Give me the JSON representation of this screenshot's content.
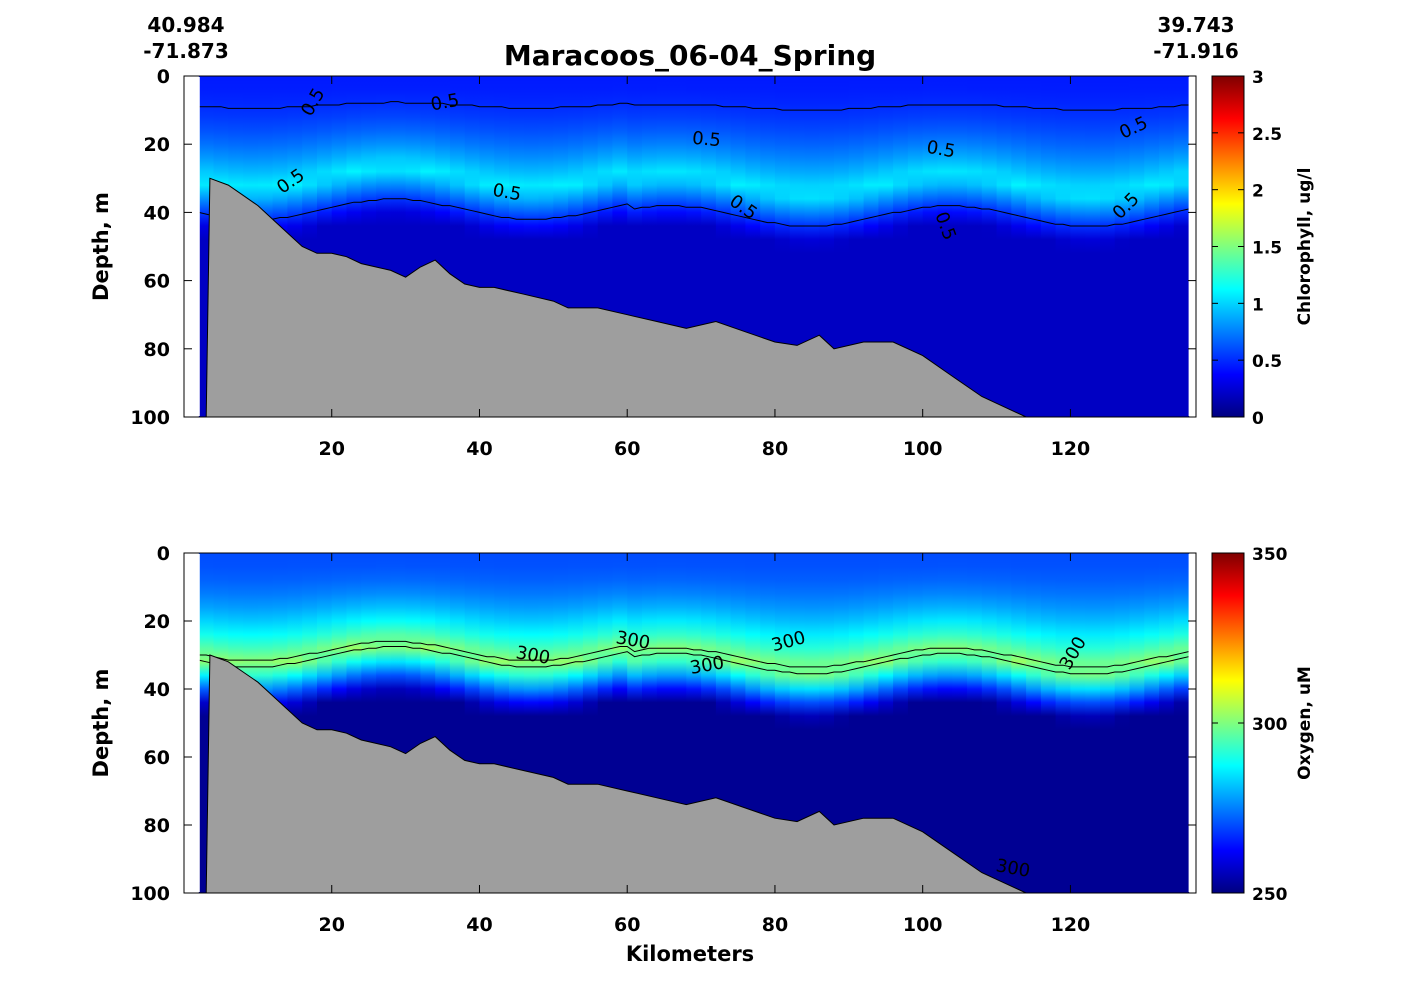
{
  "figure": {
    "title": "Maracoos_06-04_Spring",
    "start": {
      "lat": "40.984",
      "lon": "-71.873"
    },
    "end": {
      "lat": "39.743",
      "lon": "-71.916"
    },
    "xlabel": "Kilometers"
  },
  "colors": {
    "bathymetry": "#9e9e9e",
    "jet": [
      "#00007f",
      "#0000ff",
      "#007fff",
      "#00ffff",
      "#7fff7f",
      "#ffff00",
      "#ff7f00",
      "#ff0000",
      "#7f0000"
    ]
  },
  "chart_data": [
    {
      "type": "heatmap",
      "ylabel": "Depth, m",
      "colorbar_label": "Chlorophyll, ug/l",
      "xlim": [
        0,
        137
      ],
      "ylim": [
        100,
        0
      ],
      "xticks": [
        "20",
        "40",
        "60",
        "80",
        "100",
        "120"
      ],
      "yticks": [
        "0",
        "20",
        "40",
        "60",
        "80",
        "100"
      ],
      "clim": [
        0,
        3
      ],
      "cticks": [
        "0",
        "0.5",
        "1",
        "1.5",
        "2",
        "2.5",
        "3"
      ],
      "contour_level": 0.5,
      "contour_labels": [
        "0.5",
        "0.5",
        "0.5",
        "0.5",
        "0.5",
        "0.5",
        "0.5",
        "0.5",
        "0.5",
        "0.5"
      ],
      "values": {
        "surface": 0.45,
        "max_layer": 1.1,
        "max_layer_depth_m": 30,
        "deep": 0.2
      }
    },
    {
      "type": "heatmap",
      "ylabel": "Depth, m",
      "colorbar_label": "Oxygen, uM",
      "xlim": [
        0,
        137
      ],
      "ylim": [
        100,
        0
      ],
      "xticks": [
        "20",
        "40",
        "60",
        "80",
        "100",
        "120"
      ],
      "yticks": [
        "0",
        "20",
        "40",
        "60",
        "80",
        "100"
      ],
      "clim": [
        250,
        350
      ],
      "cticks": [
        "250",
        "300",
        "350"
      ],
      "contour_level": 300,
      "contour_labels": [
        "300",
        "300",
        "300",
        "300",
        "300",
        "300"
      ],
      "values": {
        "surface": 270,
        "max_layer": 303,
        "max_layer_depth_m": 30,
        "deep": 252
      }
    }
  ],
  "bathymetry": {
    "km": [
      3,
      3.5,
      6,
      8,
      10,
      12,
      14,
      16,
      18,
      20,
      22,
      24,
      26,
      28,
      30,
      32,
      34,
      36,
      38,
      40,
      42,
      46,
      50,
      52,
      56,
      60,
      64,
      68,
      72,
      76,
      80,
      83,
      86,
      88,
      92,
      96,
      100,
      104,
      108,
      112,
      114,
      137
    ],
    "depth_m": [
      100,
      30,
      32,
      35,
      38,
      42,
      46,
      50,
      52,
      52,
      53,
      55,
      56,
      57,
      59,
      56,
      54,
      58,
      61,
      62,
      62,
      64,
      66,
      68,
      68,
      70,
      72,
      74,
      72,
      75,
      78,
      79,
      76,
      80,
      78,
      78,
      82,
      88,
      94,
      98,
      100,
      100
    ]
  }
}
